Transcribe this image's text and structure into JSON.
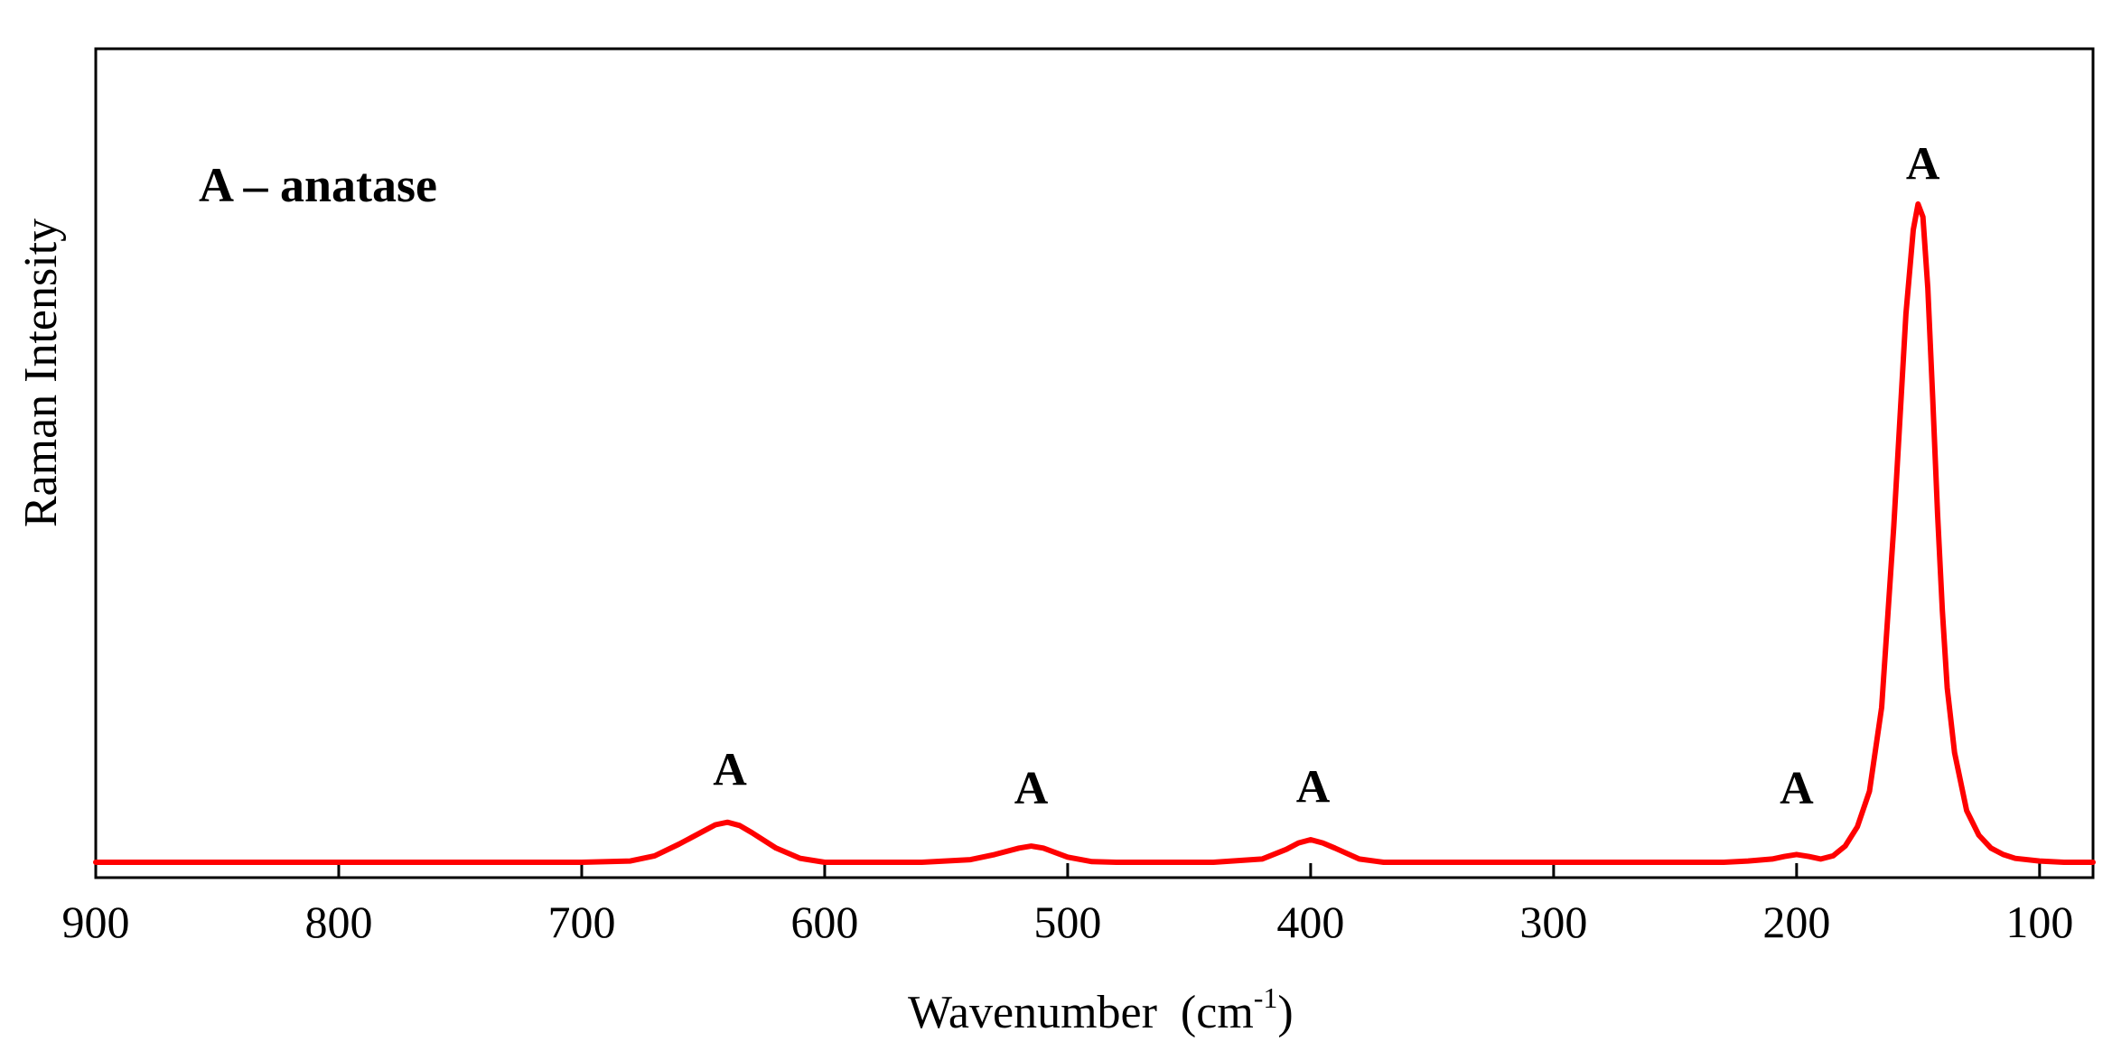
{
  "chart_data": {
    "type": "line",
    "title": "",
    "xlabel": "Wavenumber  (cm",
    "xlabel_sup": "-1",
    "xlabel_close": ")",
    "ylabel": "Raman Intensity",
    "xlim": [
      900,
      78
    ],
    "x_reversed": true,
    "ylim": [
      0,
      1.15
    ],
    "grid": false,
    "legend": "none",
    "line_color": "#ff0000",
    "x_ticks": [
      900,
      800,
      700,
      600,
      500,
      400,
      300,
      200,
      100
    ],
    "x_tick_labels": [
      "900",
      "800",
      "700",
      "600",
      "500",
      "400",
      "300",
      "200",
      "100"
    ],
    "annotation": "A – anatase",
    "peak_labels": [
      {
        "x": 639,
        "text": "A"
      },
      {
        "x": 515,
        "text": "A"
      },
      {
        "x": 399,
        "text": "A"
      },
      {
        "x": 200,
        "text": "A"
      },
      {
        "x": 148,
        "text": "A"
      }
    ],
    "series": [
      {
        "x": [
          900,
          700,
          680,
          670,
          660,
          650,
          645,
          640,
          635,
          630,
          620,
          610,
          600,
          560,
          540,
          530,
          520,
          515,
          510,
          500,
          490,
          480,
          440,
          420,
          410,
          405,
          400,
          395,
          390,
          380,
          370,
          330,
          240,
          230,
          220,
          210,
          205,
          200,
          195,
          190,
          185,
          180,
          175,
          170,
          165,
          160,
          155,
          152,
          150,
          148,
          146,
          144,
          142,
          140,
          138,
          135,
          130,
          125,
          120,
          115,
          110,
          100,
          90,
          78
        ],
        "y": [
          0.0,
          0.0,
          0.002,
          0.01,
          0.028,
          0.048,
          0.058,
          0.062,
          0.057,
          0.046,
          0.022,
          0.006,
          0.0,
          0.0,
          0.004,
          0.012,
          0.022,
          0.025,
          0.022,
          0.008,
          0.001,
          0.0,
          0.0,
          0.005,
          0.02,
          0.03,
          0.035,
          0.03,
          0.022,
          0.005,
          0.0,
          0.0,
          0.0,
          0.0,
          0.002,
          0.005,
          0.009,
          0.012,
          0.009,
          0.005,
          0.01,
          0.025,
          0.055,
          0.11,
          0.24,
          0.52,
          0.85,
          0.98,
          1.02,
          1.0,
          0.89,
          0.72,
          0.54,
          0.39,
          0.27,
          0.17,
          0.08,
          0.042,
          0.022,
          0.012,
          0.006,
          0.002,
          0.0,
          0.0
        ]
      }
    ]
  }
}
